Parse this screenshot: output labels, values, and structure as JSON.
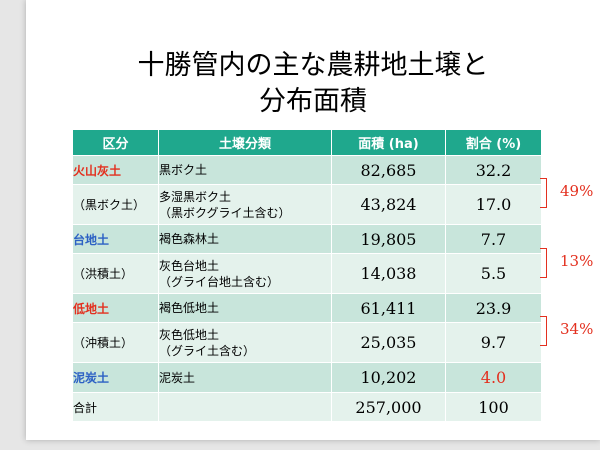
{
  "title": {
    "line1": "十勝管内の主な農耕地土壌と",
    "line2": "分布面積"
  },
  "table": {
    "headers": [
      "区分",
      "土壌分類",
      "面積 (ha)",
      "割合 (%)"
    ],
    "rows": [
      {
        "category": "火山灰土",
        "soil": [
          "黒ボク土"
        ],
        "area": "82,685",
        "ratio": "32.2"
      },
      {
        "category": "（黒ボク土）",
        "soil": [
          "多湿黒ボク土",
          "（黒ボクグライ土含む）"
        ],
        "area": "43,824",
        "ratio": "17.0"
      },
      {
        "category": "台地土",
        "soil": [
          "褐色森林土"
        ],
        "area": "19,805",
        "ratio": "7.7"
      },
      {
        "category": "（洪積土）",
        "soil": [
          "灰色台地土",
          "（グライ台地土含む）"
        ],
        "area": "14,038",
        "ratio": "5.5"
      },
      {
        "category": "低地土",
        "soil": [
          "褐色低地土"
        ],
        "area": "61,411",
        "ratio": "23.9"
      },
      {
        "category": "（沖積土）",
        "soil": [
          "灰色低地土",
          "（グライ土含む）"
        ],
        "area": "25,035",
        "ratio": "9.7"
      },
      {
        "category": "泥炭土",
        "soil": [
          "泥炭土"
        ],
        "area": "10,202",
        "ratio": "4.0"
      },
      {
        "category": "合計",
        "soil": [
          ""
        ],
        "area": "257,000",
        "ratio": "100"
      }
    ]
  },
  "group_totals": [
    "49%",
    "13%",
    "34%"
  ],
  "colors": {
    "header_bg": "#1fa88d",
    "row_dark": "#c8e5db",
    "row_light": "#e4f2ec",
    "accent_red": "#e3301f",
    "accent_blue": "#2c61c4"
  }
}
